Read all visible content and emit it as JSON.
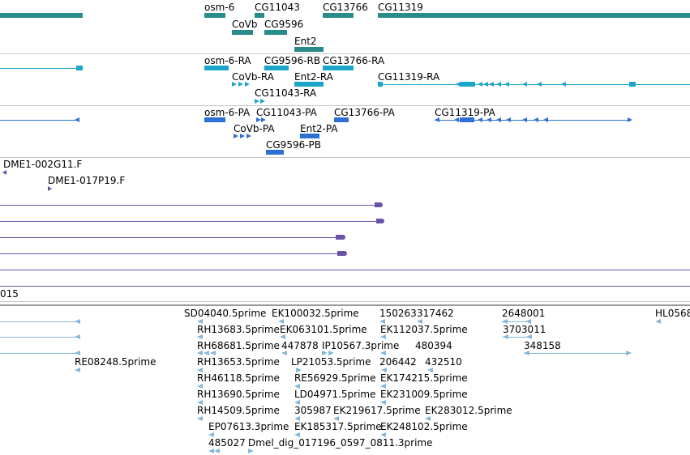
{
  "colors": {
    "gene": "#2a8b8b",
    "transcript": "#1ba5c7",
    "protein": "#2e6fd6",
    "clone": "#6a52a8",
    "est": "#84b7da",
    "divider": "#c8c8c8"
  },
  "genes": {
    "osm6": "osm-6",
    "cg11043": "CG11043",
    "cg13766": "CG13766",
    "cg11319": "CG11319",
    "covb": "CoVb",
    "cg9596": "CG9596",
    "ent2": "Ent2"
  },
  "transcripts": {
    "osm6_ra": "osm-6-RA",
    "cg9596_rb": "CG9596-RB",
    "cg13766_ra": "CG13766-RA",
    "covb_ra": "CoVb-RA",
    "ent2_ra": "Ent2-RA",
    "cg11319_ra": "CG11319-RA",
    "cg11043_ra": "CG11043-RA"
  },
  "proteins": {
    "osm6_pa": "osm-6-PA",
    "cg11043_pa": "CG11043-PA",
    "cg13766_pa": "CG13766-PA",
    "cg11319_pa": "CG11319-PA",
    "covb_pa": "CoVb-PA",
    "ent2_pa": "Ent2-PA",
    "cg9596_pb": "CG9596-PB"
  },
  "clones": {
    "c1": "DME1-002G11.F",
    "c2": "DME1-017P19.F"
  },
  "partial_label": "015",
  "ests": {
    "sd04040": "SD04040.5prime",
    "ek100032": "EK100032.5prime",
    "n150263": "150263",
    "n317462": "317462",
    "n2648001": "2648001",
    "hl056": "HL0568",
    "rh13683": "RH13683.5prime",
    "ek063101": "EK063101.5prime",
    "ek112037": "EK112037.5prime",
    "n3703011": "3703011",
    "rh68681": "RH68681.5prime",
    "n447878": "447878",
    "ip10567": "IP10567.3prime",
    "n480394": "480394",
    "n348158": "348158",
    "re08248": "RE08248.5prime",
    "rh13653": "RH13653.5prime",
    "lp21053": "LP21053.5prime",
    "n206442": "206442",
    "n432510": "432510",
    "rh46118": "RH46118.5prime",
    "re56929": "RE56929.5prime",
    "ek174215": "EK174215.5prime",
    "rh13690": "RH13690.5prime",
    "ld04971": "LD04971.5prime",
    "ek231009": "EK231009.5prime",
    "rh14509": "RH14509.5prime",
    "n305987": "305987",
    "ek219617": "EK219617.5prime",
    "ek283012": "EK283012.5prime",
    "ep07613": "EP07613.3prime",
    "ek185317": "EK185317.5prime",
    "ek248102": "EK248102.5prime",
    "n485027": "485027",
    "dmel_dig": "Dmel_dig_017196_0597_0811.3prime"
  }
}
